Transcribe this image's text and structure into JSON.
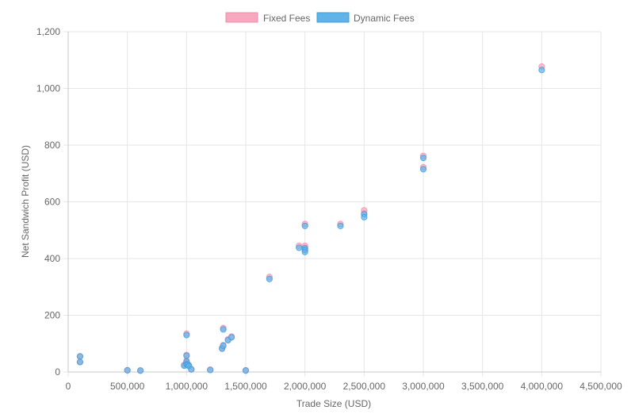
{
  "colors": {
    "fixed_fill": "#F7A8BE",
    "fixed_stroke": "#F28DAA",
    "dynamic_fill": "#5FB3E8",
    "dynamic_stroke": "#3E9FDD",
    "grid": "#E6E6E6",
    "axis": "#C8C8C8",
    "text": "#666666"
  },
  "chart_data": {
    "type": "scatter",
    "xlabel": "Trade Size (USD)",
    "ylabel": "Net Sandwich Profit (USD)",
    "xlim": [
      0,
      4500000
    ],
    "ylim": [
      0,
      1200
    ],
    "xticks": [
      0,
      500000,
      1000000,
      1500000,
      2000000,
      2500000,
      3000000,
      3500000,
      4000000,
      4500000
    ],
    "xtick_labels": [
      "0",
      "500,000",
      "1,000,000",
      "1,500,000",
      "2,000,000",
      "2,500,000",
      "3,000,000",
      "3,500,000",
      "4,000,000",
      "4,500,000"
    ],
    "yticks": [
      0,
      200,
      400,
      600,
      800,
      1000,
      1200
    ],
    "ytick_labels": [
      "0",
      "200",
      "400",
      "600",
      "800",
      "1,000",
      "1,200"
    ],
    "grid": true,
    "legend_position": "top-center",
    "series": [
      {
        "name": "Fixed Fees",
        "color_key": "fixed",
        "points": [
          [
            100000,
            55
          ],
          [
            100000,
            35
          ],
          [
            500000,
            6
          ],
          [
            610000,
            5
          ],
          [
            980000,
            25
          ],
          [
            1000000,
            135
          ],
          [
            1000000,
            60
          ],
          [
            1000000,
            40
          ],
          [
            1000000,
            30
          ],
          [
            1010000,
            28
          ],
          [
            1020000,
            24
          ],
          [
            1040000,
            10
          ],
          [
            1200000,
            8
          ],
          [
            1300000,
            85
          ],
          [
            1310000,
            95
          ],
          [
            1310000,
            155
          ],
          [
            1350000,
            115
          ],
          [
            1380000,
            125
          ],
          [
            1500000,
            6
          ],
          [
            1700000,
            335
          ],
          [
            1950000,
            445
          ],
          [
            2000000,
            522
          ],
          [
            2000000,
            445
          ],
          [
            2000000,
            438
          ],
          [
            2000000,
            430
          ],
          [
            2300000,
            522
          ],
          [
            2500000,
            570
          ],
          [
            2500000,
            560
          ],
          [
            3000000,
            762
          ],
          [
            3000000,
            722
          ],
          [
            4000000,
            1077
          ]
        ]
      },
      {
        "name": "Dynamic Fees",
        "color_key": "dynamic",
        "points": [
          [
            100000,
            55
          ],
          [
            100000,
            35
          ],
          [
            500000,
            6
          ],
          [
            610000,
            5
          ],
          [
            980000,
            22
          ],
          [
            1000000,
            130
          ],
          [
            1000000,
            57
          ],
          [
            1000000,
            36
          ],
          [
            1000000,
            27
          ],
          [
            1010000,
            25
          ],
          [
            1020000,
            21
          ],
          [
            1040000,
            9
          ],
          [
            1200000,
            7
          ],
          [
            1300000,
            82
          ],
          [
            1310000,
            92
          ],
          [
            1310000,
            150
          ],
          [
            1350000,
            112
          ],
          [
            1380000,
            122
          ],
          [
            1500000,
            5
          ],
          [
            1700000,
            328
          ],
          [
            1950000,
            438
          ],
          [
            2000000,
            515
          ],
          [
            2000000,
            436
          ],
          [
            2000000,
            430
          ],
          [
            2000000,
            423
          ],
          [
            2300000,
            515
          ],
          [
            2500000,
            556
          ],
          [
            2500000,
            546
          ],
          [
            3000000,
            755
          ],
          [
            3000000,
            715
          ],
          [
            4000000,
            1065
          ]
        ]
      }
    ]
  }
}
